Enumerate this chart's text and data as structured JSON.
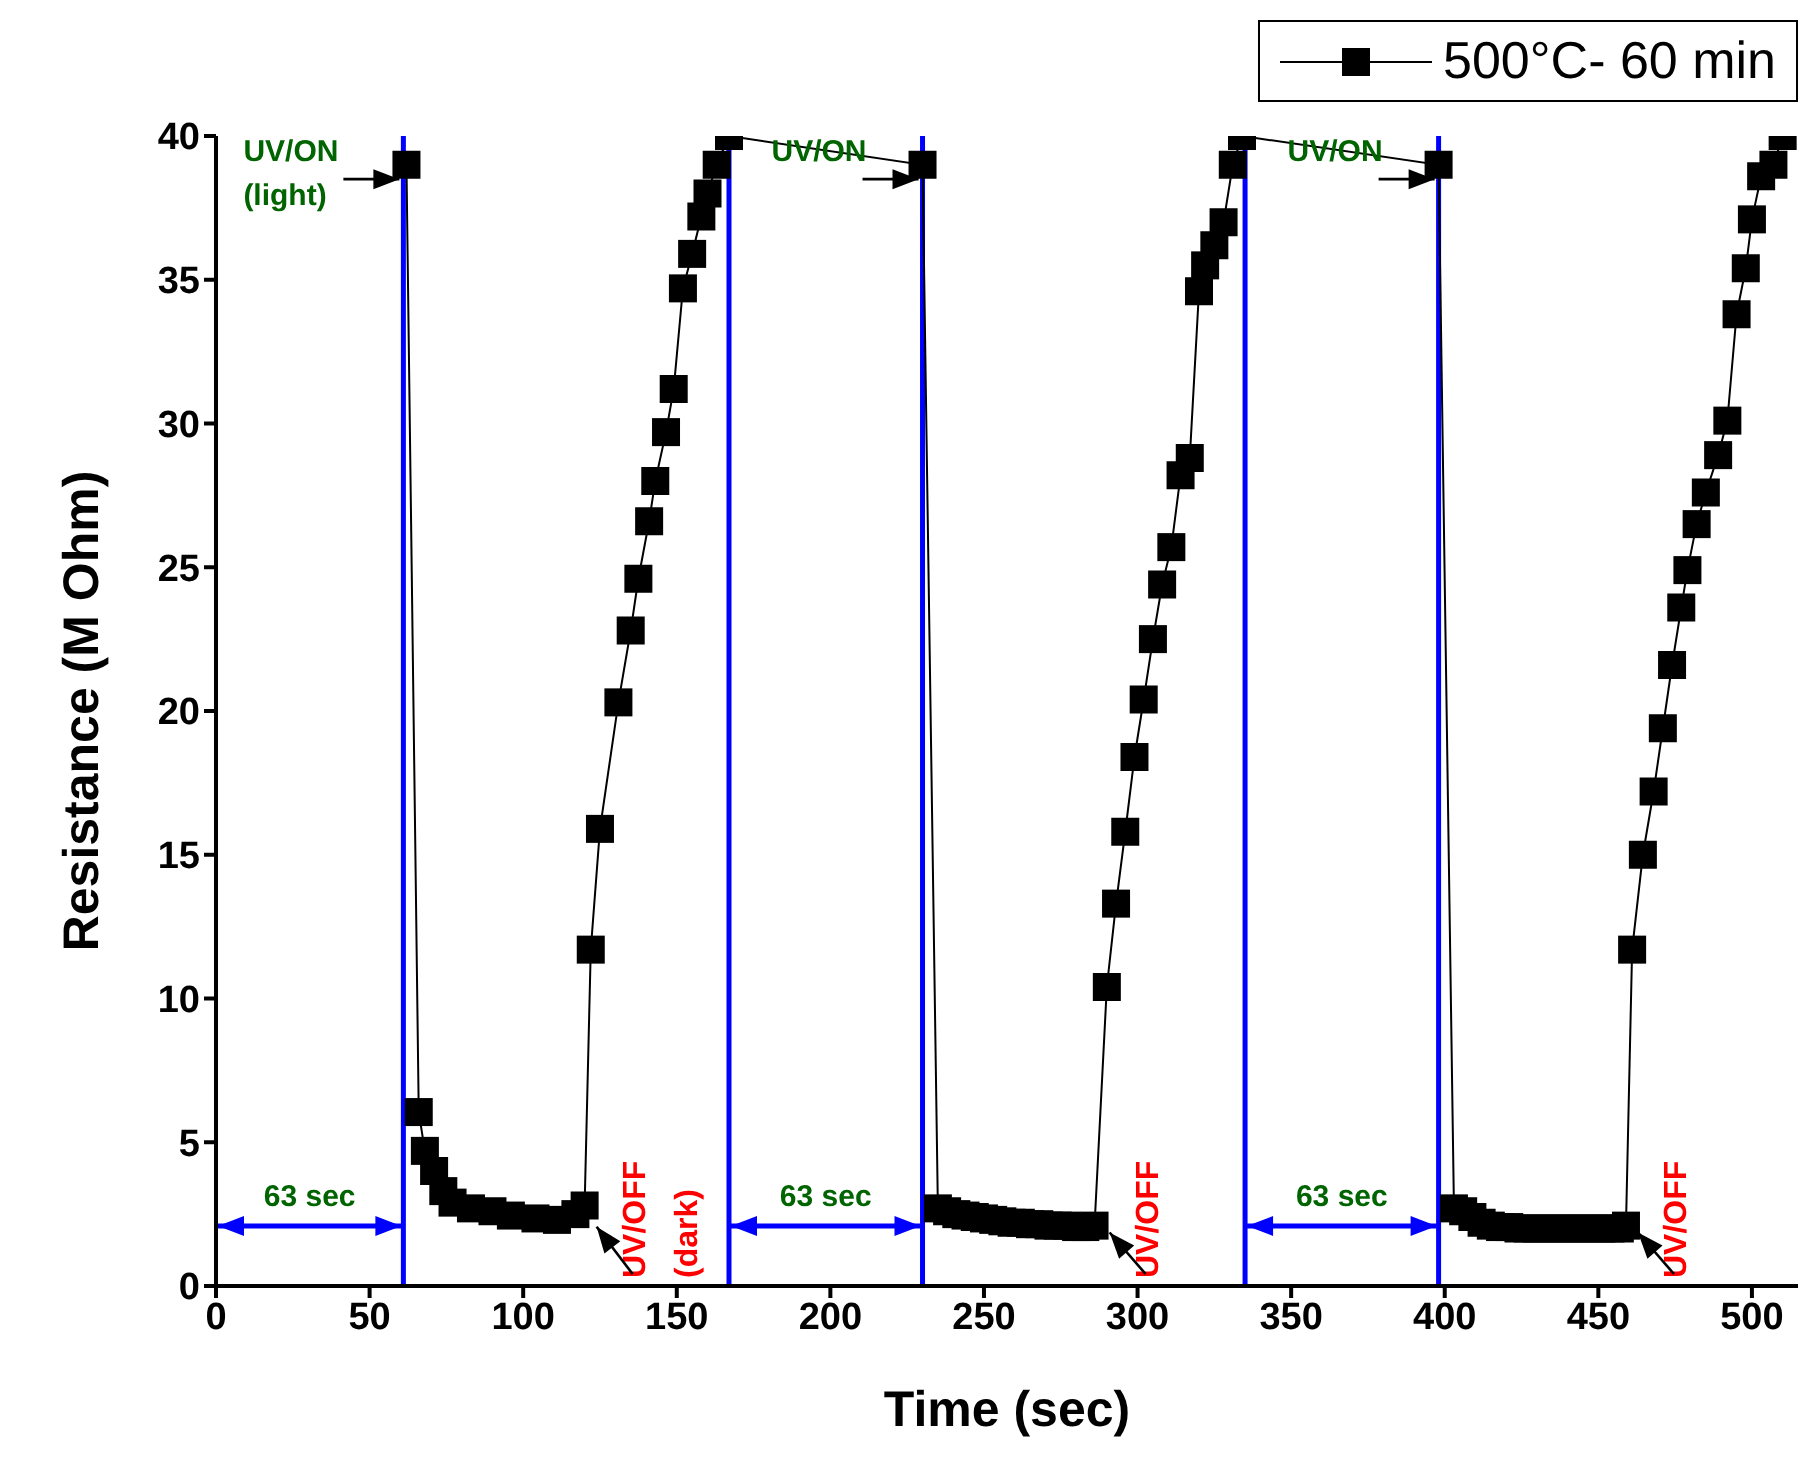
{
  "chart_data": {
    "type": "line",
    "xlabel": "Time (sec)",
    "ylabel": "Resistance (M Ohm)",
    "xlim": [
      0,
      515
    ],
    "ylim": [
      0,
      40
    ],
    "xticks": [
      0,
      50,
      100,
      150,
      200,
      250,
      300,
      350,
      400,
      450,
      500
    ],
    "yticks": [
      0,
      5,
      10,
      15,
      20,
      25,
      30,
      35,
      40
    ],
    "legend": "top right",
    "marker": "square",
    "series": [
      {
        "name": "500°C- 60 min",
        "color": "#000000",
        "x": [
          62,
          66,
          68,
          71,
          74,
          77,
          83,
          90,
          96,
          104,
          111,
          117,
          120,
          122,
          125,
          131,
          135,
          137.5,
          141,
          143,
          146.5,
          149,
          152,
          155,
          158,
          160,
          163,
          167,
          230,
          235,
          238,
          241,
          244,
          247,
          250,
          253,
          256,
          259,
          262,
          265,
          268,
          271,
          274,
          277,
          280,
          283,
          286,
          290,
          293,
          296,
          299,
          302,
          305,
          308,
          311,
          314,
          317,
          320,
          322,
          325,
          328,
          331,
          334,
          398,
          403,
          406,
          409,
          412,
          415,
          418,
          421,
          424,
          427,
          430,
          433,
          436,
          439,
          442,
          445,
          448,
          451,
          454,
          457,
          459,
          461,
          464.5,
          468,
          471,
          474,
          477,
          479,
          482,
          485,
          489,
          492,
          495,
          498,
          500,
          503,
          507,
          510
        ],
        "values": [
          39,
          6.05,
          4.7,
          4.0,
          3.3,
          2.9,
          2.7,
          2.6,
          2.45,
          2.35,
          2.3,
          2.5,
          2.8,
          11.7,
          15.9,
          20.3,
          22.8,
          24.6,
          26.6,
          28.0,
          29.7,
          31.2,
          34.7,
          35.9,
          37.2,
          38.0,
          39,
          40,
          39,
          2.7,
          2.6,
          2.5,
          2.45,
          2.4,
          2.35,
          2.3,
          2.25,
          2.2,
          2.2,
          2.15,
          2.15,
          2.1,
          2.1,
          2.1,
          2.05,
          2.05,
          2.1,
          10.4,
          13.3,
          15.8,
          18.4,
          20.4,
          22.5,
          24.4,
          25.7,
          28.2,
          28.8,
          34.6,
          35.5,
          36.2,
          37,
          39,
          40,
          39,
          2.7,
          2.6,
          2.4,
          2.2,
          2.1,
          2.05,
          2.05,
          2.0,
          2.0,
          2.0,
          2.0,
          2.0,
          2.0,
          2.0,
          2.0,
          2.0,
          2.0,
          2.0,
          2.0,
          2.1,
          11.7,
          15.0,
          17.2,
          19.4,
          21.6,
          23.6,
          24.9,
          26.5,
          27.6,
          28.9,
          30.1,
          33.8,
          35.4,
          37.1,
          38.6,
          39,
          40
        ]
      }
    ],
    "ref_lines": [
      {
        "axis": "x",
        "value": 61,
        "color": "#0000ff"
      },
      {
        "axis": "x",
        "value": 167,
        "color": "#0000ff"
      },
      {
        "axis": "x",
        "value": 230,
        "color": "#0000ff"
      },
      {
        "axis": "x",
        "value": 335,
        "color": "#0000ff"
      },
      {
        "axis": "x",
        "value": 398,
        "color": "#0000ff"
      }
    ],
    "annotations": [
      {
        "text": "UV/ON (light)",
        "x": 61,
        "y": 38.5
      },
      "63 sec",
      {
        "text": "UV/OFF (dark)",
        "x": 120,
        "y": 2.2
      },
      {
        "text": "UV/ON",
        "x": 230,
        "y": 38.5
      },
      "63 sec",
      {
        "text": "UV/OFF",
        "x": 287,
        "y": 2.0
      },
      {
        "text": "UV/ON",
        "x": 398,
        "y": 38.5
      },
      "63 sec",
      {
        "text": "UV/OFF",
        "x": 459,
        "y": 2.0
      }
    ]
  }
}
